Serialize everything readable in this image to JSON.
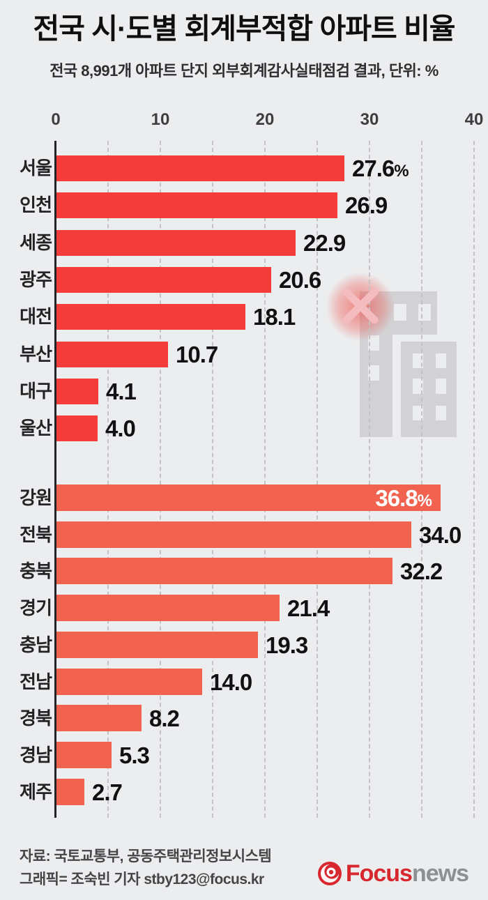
{
  "header": {
    "title_parts": [
      "전국 시·도별 ",
      "회계부적합 아파트",
      " 비율"
    ],
    "subtitle": "전국 8,991개 아파트 단지 외부회계감사실태점검 결과, 단위: %"
  },
  "chart_data": {
    "type": "bar",
    "orientation": "horizontal",
    "unit": "%",
    "title": "전국 시·도별 회계부적합 아파트 비율",
    "subtitle": "전국 8,991개 아파트 단지 외부회계감사실태점검 결과, 단위: %",
    "xlim": [
      0,
      40
    ],
    "xticks": [
      0,
      10,
      20,
      30,
      40
    ],
    "grid_step": 5,
    "grid_style": "dashed",
    "groups": [
      {
        "name": "cities",
        "bar_color": "#f43c3a",
        "rows": [
          {
            "label": "서울",
            "value": 27.6,
            "display": "27.6",
            "suffix": "%"
          },
          {
            "label": "인천",
            "value": 26.9,
            "display": "26.9",
            "suffix": ""
          },
          {
            "label": "세종",
            "value": 22.9,
            "display": "22.9",
            "suffix": ""
          },
          {
            "label": "광주",
            "value": 20.6,
            "display": "20.6",
            "suffix": ""
          },
          {
            "label": "대전",
            "value": 18.1,
            "display": "18.1",
            "suffix": ""
          },
          {
            "label": "부산",
            "value": 10.7,
            "display": "10.7",
            "suffix": ""
          },
          {
            "label": "대구",
            "value": 4.1,
            "display": "4.1",
            "suffix": ""
          },
          {
            "label": "울산",
            "value": 4.0,
            "display": "4.0",
            "suffix": ""
          }
        ]
      },
      {
        "name": "provinces",
        "bar_color": "#f1634f",
        "rows": [
          {
            "label": "강원",
            "value": 36.8,
            "display": "36.8",
            "suffix": "%",
            "value_inside": true
          },
          {
            "label": "전북",
            "value": 34.0,
            "display": "34.0",
            "suffix": ""
          },
          {
            "label": "충북",
            "value": 32.2,
            "display": "32.2",
            "suffix": ""
          },
          {
            "label": "경기",
            "value": 21.4,
            "display": "21.4",
            "suffix": ""
          },
          {
            "label": "충남",
            "value": 19.3,
            "display": "19.3",
            "suffix": ""
          },
          {
            "label": "전남",
            "value": 14.0,
            "display": "14.0",
            "suffix": ""
          },
          {
            "label": "경북",
            "value": 8.2,
            "display": "8.2",
            "suffix": ""
          },
          {
            "label": "경남",
            "value": 5.3,
            "display": "5.3",
            "suffix": ""
          },
          {
            "label": "제주",
            "value": 2.7,
            "display": "2.7",
            "suffix": ""
          }
        ]
      }
    ]
  },
  "decorations": {
    "building_color": "#d2d2d4",
    "window_color": "#ecedee",
    "x_mark_color": "#f5bcc0",
    "glow_color": "#ee524c"
  },
  "footer": {
    "source_line": "자료: 국토교통부, 공동주택관리정보시스템",
    "credit_line": "그래픽= 조숙빈 기자 stby123@focus.kr"
  },
  "logo": {
    "brand": "Focus",
    "suffix": "news",
    "brand_color": "#d6282e",
    "suffix_color": "#8d9093"
  }
}
